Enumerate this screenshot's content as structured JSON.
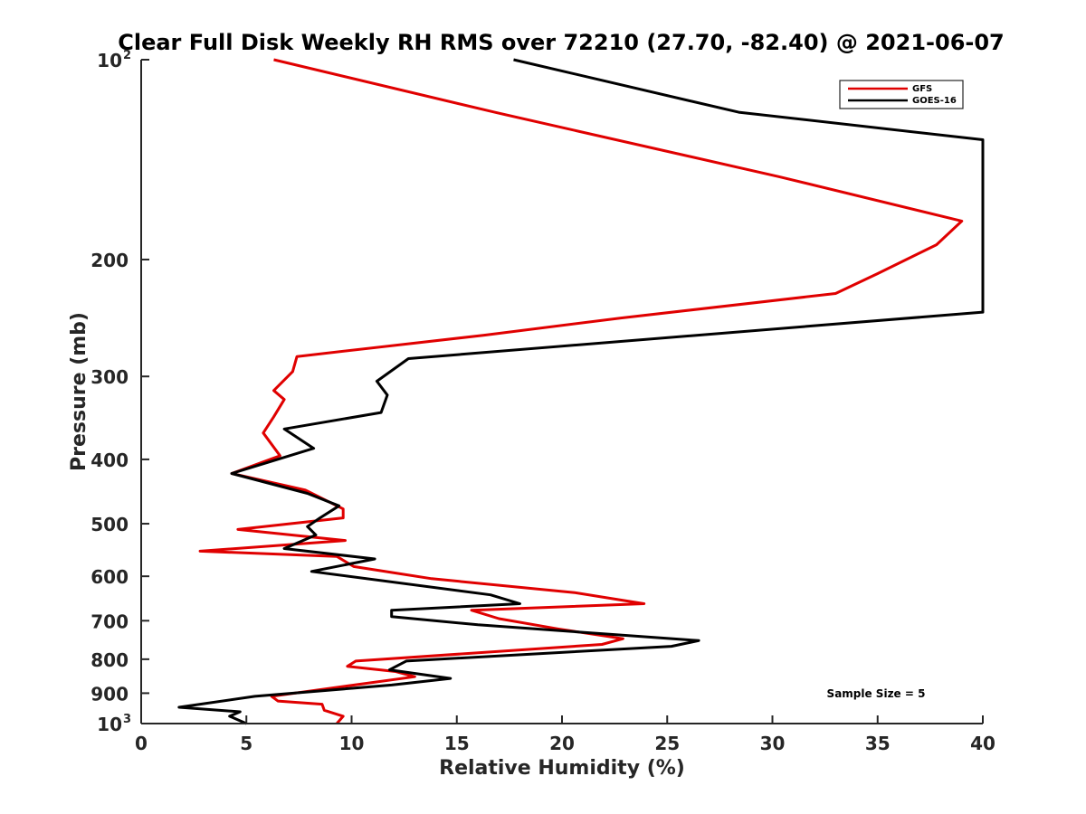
{
  "chart_data": {
    "type": "line",
    "title": "Clear Full Disk Weekly RH RMS over 72210 (27.70, -82.40) @ 2021-06-07",
    "xlabel": "Relative Humidity (%)",
    "ylabel": "Pressure (mb)",
    "xlim": [
      0,
      40
    ],
    "ylim": [
      100,
      1000
    ],
    "y_scale": "log",
    "y_reversed": true,
    "grid": false,
    "legend_position": "top-right",
    "x_ticks": [
      "0",
      "5",
      "10",
      "15",
      "20",
      "25",
      "30",
      "35",
      "40"
    ],
    "y_ticks": [
      {
        "base": "10",
        "exp": "2",
        "value": 100
      },
      {
        "base": "200",
        "exp": "",
        "value": 200
      },
      {
        "base": "300",
        "exp": "",
        "value": 300
      },
      {
        "base": "400",
        "exp": "",
        "value": 400
      },
      {
        "base": "500",
        "exp": "",
        "value": 500
      },
      {
        "base": "600",
        "exp": "",
        "value": 600
      },
      {
        "base": "700",
        "exp": "",
        "value": 700
      },
      {
        "base": "800",
        "exp": "",
        "value": 800
      },
      {
        "base": "900",
        "exp": "",
        "value": 900
      },
      {
        "base": "10",
        "exp": "3",
        "value": 1000
      }
    ],
    "series": [
      {
        "name": "GFS",
        "color": "#e00000",
        "points": [
          [
            6.3,
            100
          ],
          [
            16.8,
            120
          ],
          [
            30.3,
            150
          ],
          [
            39,
            175
          ],
          [
            37.8,
            190
          ],
          [
            35,
            210
          ],
          [
            33,
            225
          ],
          [
            22.8,
            245
          ],
          [
            16.3,
            260
          ],
          [
            7.4,
            280
          ],
          [
            7.2,
            295
          ],
          [
            6.3,
            315
          ],
          [
            6.8,
            325
          ],
          [
            6.3,
            345
          ],
          [
            5.8,
            365
          ],
          [
            6.6,
            395
          ],
          [
            4.3,
            420
          ],
          [
            7.8,
            445
          ],
          [
            9.6,
            475
          ],
          [
            9.6,
            490
          ],
          [
            4.6,
            510
          ],
          [
            9.7,
            530
          ],
          [
            2.8,
            550
          ],
          [
            9.3,
            560
          ],
          [
            10.1,
            580
          ],
          [
            13.8,
            605
          ],
          [
            20.6,
            635
          ],
          [
            23.9,
            660
          ],
          [
            15.7,
            675
          ],
          [
            17,
            695
          ],
          [
            19.8,
            720
          ],
          [
            22.9,
            745
          ],
          [
            21.9,
            760
          ],
          [
            10.2,
            805
          ],
          [
            9.8,
            820
          ],
          [
            12.1,
            835
          ],
          [
            13,
            850
          ],
          [
            6.2,
            910
          ],
          [
            6.5,
            925
          ],
          [
            8.6,
            935
          ],
          [
            8.7,
            955
          ],
          [
            9.6,
            975
          ],
          [
            9.3,
            1000
          ]
        ]
      },
      {
        "name": "GOES-16",
        "color": "#000000",
        "points": [
          [
            17.7,
            100
          ],
          [
            28.4,
            120
          ],
          [
            40,
            132
          ],
          [
            40,
            240
          ],
          [
            12.7,
            282
          ],
          [
            11.2,
            305
          ],
          [
            11.7,
            320
          ],
          [
            11.4,
            340
          ],
          [
            6.8,
            360
          ],
          [
            8.2,
            385
          ],
          [
            4.3,
            420
          ],
          [
            7.9,
            450
          ],
          [
            9.4,
            470
          ],
          [
            8.5,
            490
          ],
          [
            7.9,
            505
          ],
          [
            8.3,
            520
          ],
          [
            6.8,
            545
          ],
          [
            11.1,
            565
          ],
          [
            8.1,
            590
          ],
          [
            16.6,
            640
          ],
          [
            18,
            660
          ],
          [
            11.9,
            675
          ],
          [
            11.9,
            690
          ],
          [
            16,
            710
          ],
          [
            26.5,
            750
          ],
          [
            25.2,
            765
          ],
          [
            12.6,
            805
          ],
          [
            11.8,
            830
          ],
          [
            14.7,
            855
          ],
          [
            11.9,
            875
          ],
          [
            5.4,
            910
          ],
          [
            1.8,
            945
          ],
          [
            4.7,
            960
          ],
          [
            4.2,
            975
          ],
          [
            5,
            1000
          ]
        ]
      }
    ],
    "annotation": "Sample Size = 5"
  }
}
